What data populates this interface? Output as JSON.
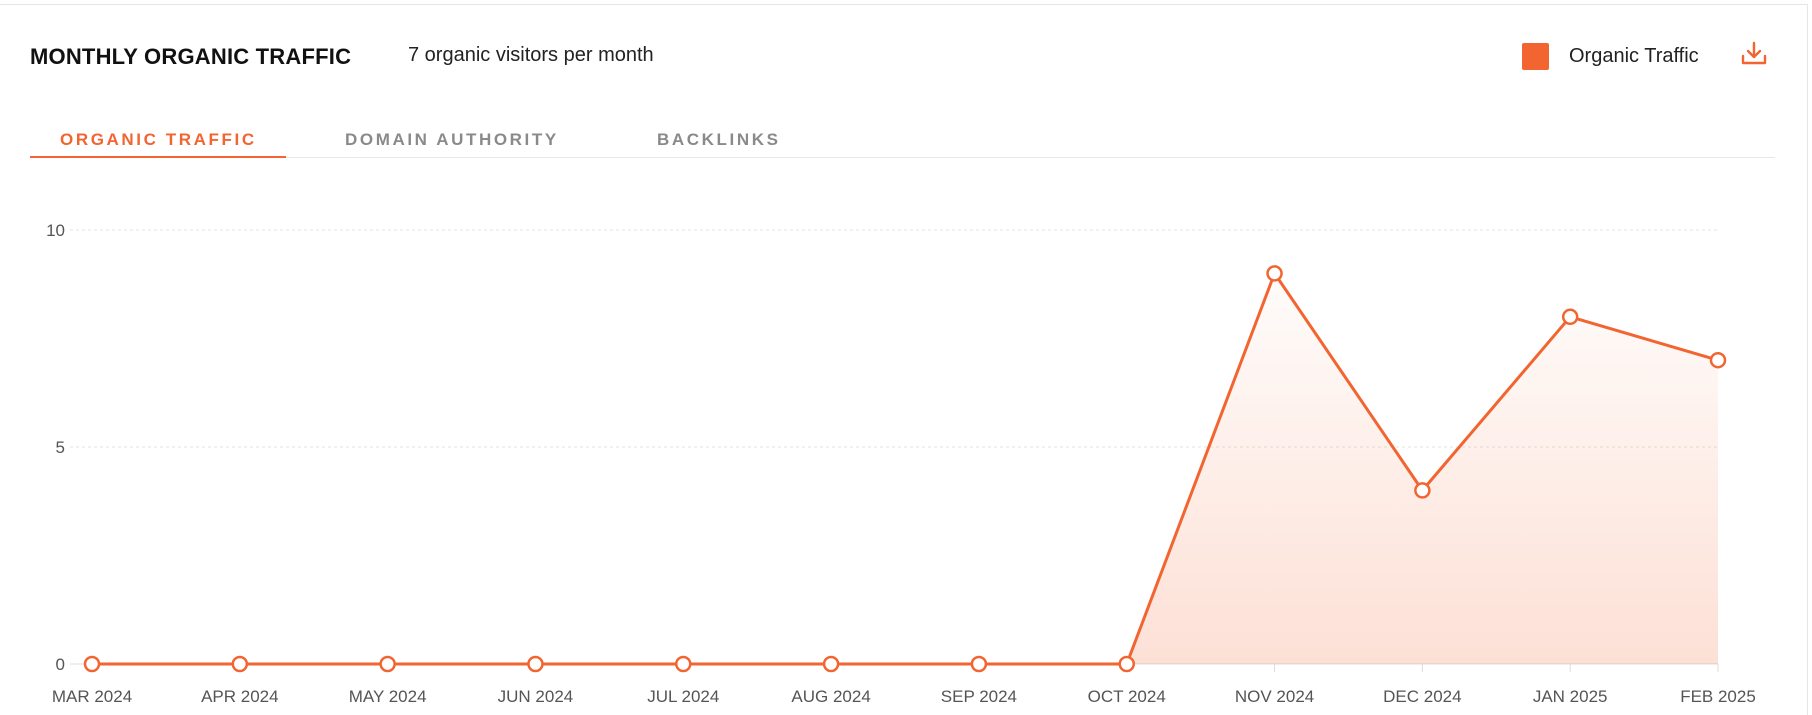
{
  "header": {
    "title": "MONTHLY ORGANIC TRAFFIC",
    "subtitle": "7 organic visitors per month"
  },
  "legend": {
    "label": "Organic Traffic",
    "color": "#f26531"
  },
  "download": {
    "icon": "download-icon"
  },
  "tabs": [
    {
      "label": "ORGANIC TRAFFIC",
      "active": true
    },
    {
      "label": "DOMAIN AUTHORITY",
      "active": false
    },
    {
      "label": "BACKLINKS",
      "active": false
    }
  ],
  "chart_data": {
    "type": "area",
    "categories": [
      "MAR 2024",
      "APR 2024",
      "MAY 2024",
      "JUN 2024",
      "JUL 2024",
      "AUG 2024",
      "SEP 2024",
      "OCT 2024",
      "NOV 2024",
      "DEC 2024",
      "JAN 2025",
      "FEB 2025"
    ],
    "series": [
      {
        "name": "Organic Traffic",
        "values": [
          0,
          0,
          0,
          0,
          0,
          0,
          0,
          0,
          9,
          4,
          8,
          7
        ],
        "color": "#f26531"
      }
    ],
    "yticks": [
      0,
      5,
      10
    ],
    "ylim": [
      0,
      10
    ],
    "grid": true,
    "legend_position": "top-right"
  }
}
